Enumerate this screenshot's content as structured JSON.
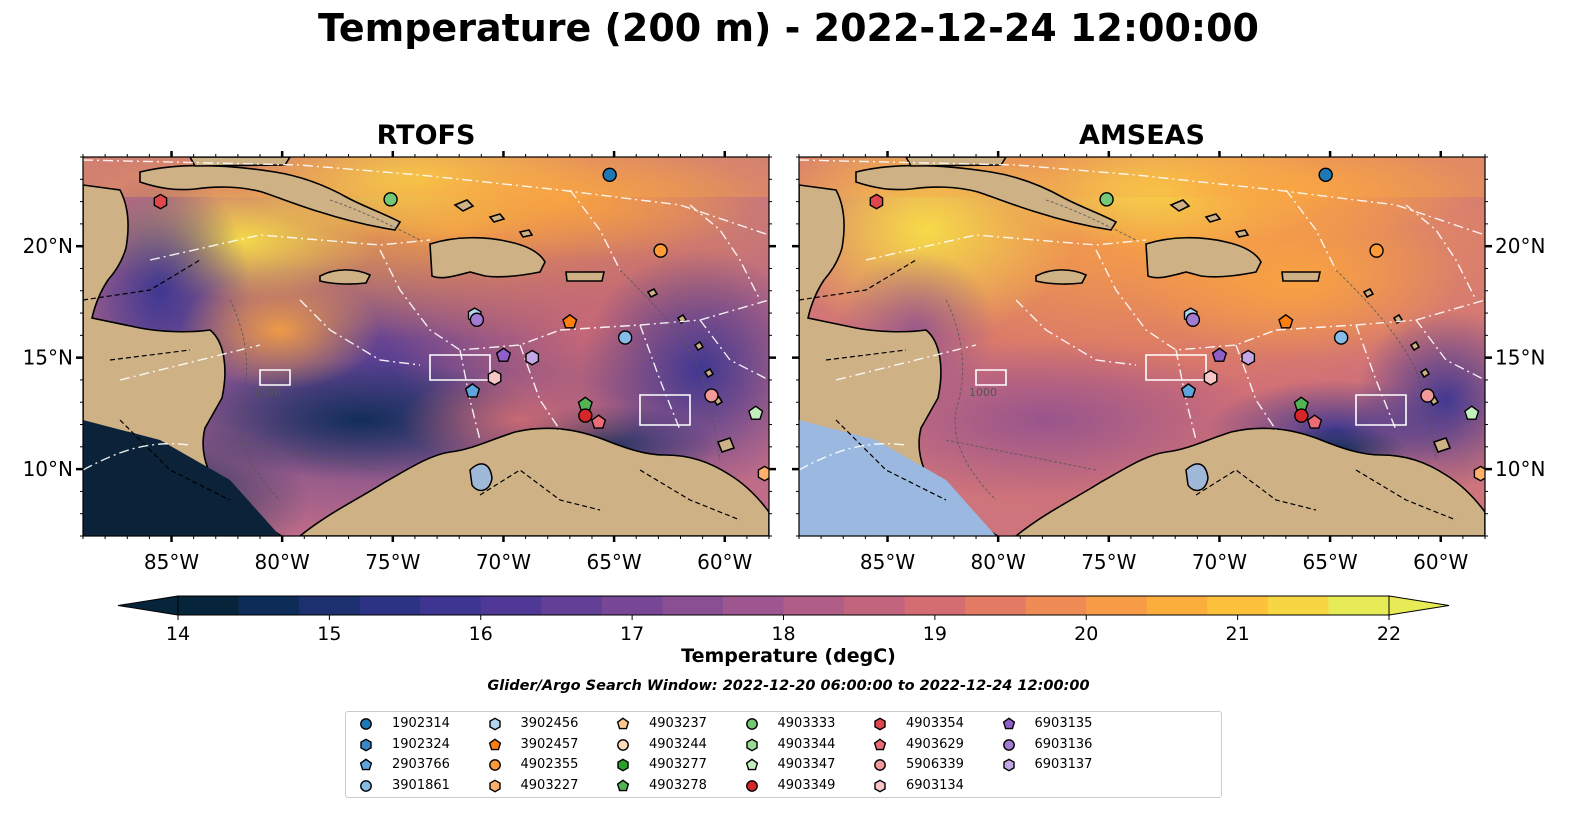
{
  "title": "Temperature (200 m) - 2022-12-24 12:00:00",
  "chart_data": [
    {
      "type": "heatmap",
      "title": "RTOFS",
      "xlim": [
        -89,
        -58
      ],
      "ylim": [
        7,
        24
      ],
      "x_ticks": [
        -85,
        -80,
        -75,
        -70,
        -65,
        -60
      ],
      "x_tick_labels": [
        "85°W",
        "80°W",
        "75°W",
        "70°W",
        "65°W",
        "60°W"
      ],
      "y_ticks": [
        10,
        15,
        20
      ],
      "y_tick_labels": [
        "10°N",
        "15°N",
        "20°N"
      ],
      "contour_label": "1000"
    },
    {
      "type": "heatmap",
      "title": "AMSEAS",
      "xlim": [
        -89,
        -58
      ],
      "ylim": [
        7,
        24
      ],
      "x_ticks": [
        -85,
        -80,
        -75,
        -70,
        -65,
        -60
      ],
      "x_tick_labels": [
        "85°W",
        "80°W",
        "75°W",
        "70°W",
        "65°W",
        "60°W"
      ],
      "y_ticks": [
        10,
        15,
        20
      ],
      "y_tick_labels": [
        "10°N",
        "15°N",
        "20°N"
      ],
      "contour_label": "1000"
    }
  ],
  "colorbar": {
    "label": "Temperature (degC)",
    "vmin": 14,
    "vmax": 22,
    "step": 0.5,
    "ticks": [
      14,
      15,
      16,
      17,
      18,
      19,
      20,
      21,
      22
    ],
    "colors": [
      "#06243a",
      "#0d2c57",
      "#1c3070",
      "#2c3384",
      "#3e3592",
      "#503996",
      "#633f96",
      "#774695",
      "#8a4e92",
      "#9d568e",
      "#b05d87",
      "#c2647e",
      "#d46d71",
      "#e37b64",
      "#ef8b55",
      "#f89c47",
      "#fcae3d",
      "#fdc23b",
      "#f6d743",
      "#e7ec56"
    ],
    "under_color": "#06243a",
    "over_color": "#e7ec56"
  },
  "search_window": "Glider/Argo Search Window: 2022-12-20 06:00:00 to 2022-12-24 12:00:00",
  "legend": [
    {
      "id": "1902314",
      "marker": "circle",
      "color": "#1f77b4"
    },
    {
      "id": "1902324",
      "marker": "hexagon",
      "color": "#3a87c8"
    },
    {
      "id": "2903766",
      "marker": "pentagon",
      "color": "#5fa5dd"
    },
    {
      "id": "3901861",
      "marker": "circle",
      "color": "#86bde6"
    },
    {
      "id": "3902456",
      "marker": "hexagon",
      "color": "#b3d5ee"
    },
    {
      "id": "3902457",
      "marker": "pentagon",
      "color": "#ff7f0e"
    },
    {
      "id": "4902355",
      "marker": "circle",
      "color": "#ff9a38"
    },
    {
      "id": "4903227",
      "marker": "hexagon",
      "color": "#ffb06a"
    },
    {
      "id": "4903237",
      "marker": "pentagon",
      "color": "#ffc690"
    },
    {
      "id": "4903244",
      "marker": "circle",
      "color": "#ffdcbb"
    },
    {
      "id": "4903277",
      "marker": "hexagon",
      "color": "#2ca02c"
    },
    {
      "id": "4903278",
      "marker": "pentagon",
      "color": "#52b552"
    },
    {
      "id": "4903333",
      "marker": "circle",
      "color": "#74c876"
    },
    {
      "id": "4903344",
      "marker": "hexagon",
      "color": "#98dc98"
    },
    {
      "id": "4903347",
      "marker": "pentagon",
      "color": "#c3efbf"
    },
    {
      "id": "4903349",
      "marker": "circle",
      "color": "#d62728"
    },
    {
      "id": "4903354",
      "marker": "hexagon",
      "color": "#e0474c"
    },
    {
      "id": "4903629",
      "marker": "pentagon",
      "color": "#ea6c74"
    },
    {
      "id": "5906339",
      "marker": "circle",
      "color": "#f29a9a"
    },
    {
      "id": "6903134",
      "marker": "hexagon",
      "color": "#f8c6c6"
    },
    {
      "id": "6903135",
      "marker": "pentagon",
      "color": "#8e5ec9"
    },
    {
      "id": "6903136",
      "marker": "circle",
      "color": "#a27bd2"
    },
    {
      "id": "6903137",
      "marker": "hexagon",
      "color": "#c6a7e6"
    }
  ],
  "floats": [
    {
      "id": "1902314",
      "lon": -65.2,
      "lat": 23.2
    },
    {
      "id": "4903333",
      "lon": -75.1,
      "lat": 22.1
    },
    {
      "id": "4903354",
      "lon": -85.5,
      "lat": 22.0
    },
    {
      "id": "4902355",
      "lon": -62.9,
      "lat": 19.8
    },
    {
      "id": "3902456",
      "lon": -71.3,
      "lat": 16.9
    },
    {
      "id": "6903136",
      "lon": -71.2,
      "lat": 16.7
    },
    {
      "id": "3902457",
      "lon": -67.0,
      "lat": 16.6
    },
    {
      "id": "3901861",
      "lon": -64.5,
      "lat": 15.9
    },
    {
      "id": "6903135",
      "lon": -70.0,
      "lat": 15.1
    },
    {
      "id": "6903137",
      "lon": -68.7,
      "lat": 15.0
    },
    {
      "id": "6903134",
      "lon": -70.4,
      "lat": 14.1
    },
    {
      "id": "2903766",
      "lon": -71.4,
      "lat": 13.5
    },
    {
      "id": "5906339",
      "lon": -60.6,
      "lat": 13.3
    },
    {
      "id": "4903278",
      "lon": -66.3,
      "lat": 12.9
    },
    {
      "id": "4903347",
      "lon": -58.6,
      "lat": 12.5
    },
    {
      "id": "4903349",
      "lon": -66.3,
      "lat": 12.4
    },
    {
      "id": "4903629",
      "lon": -65.7,
      "lat": 12.1
    },
    {
      "id": "4903227",
      "lon": -58.2,
      "lat": 9.8
    }
  ]
}
